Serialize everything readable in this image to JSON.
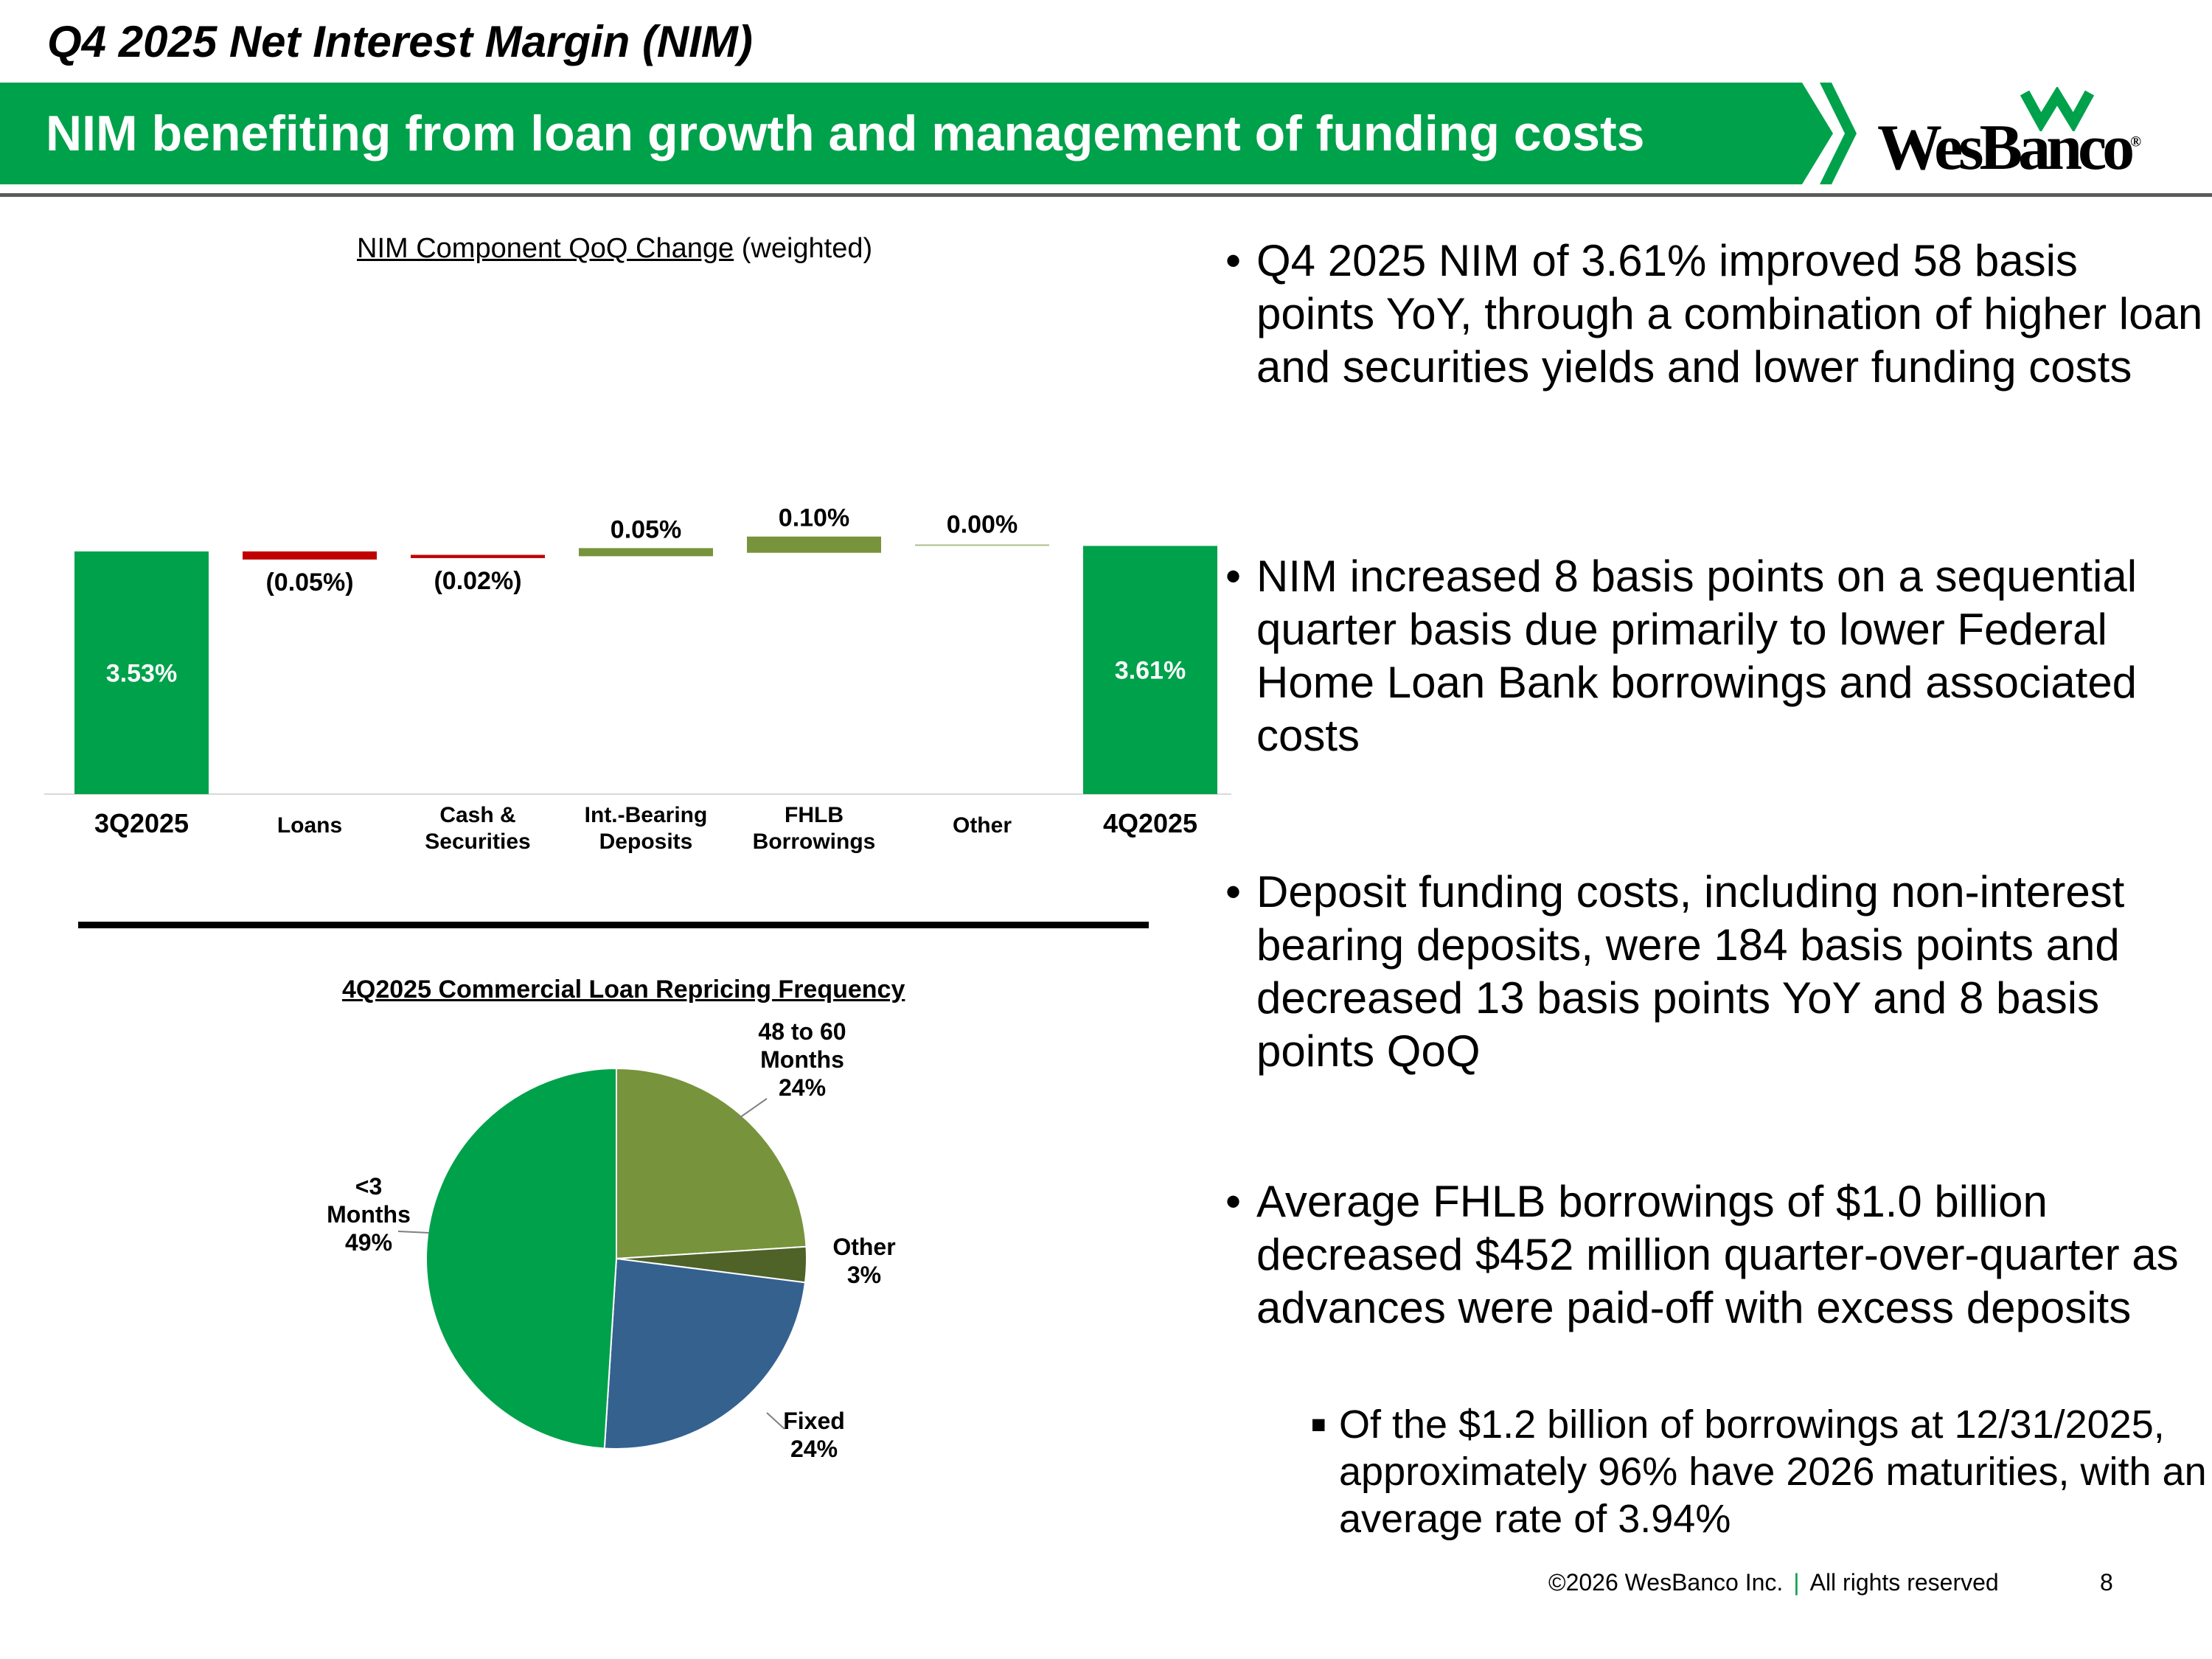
{
  "header": {
    "slide_title": "Q4 2025 Net Interest Margin (NIM)",
    "banner_text": "NIM benefiting from loan growth and management of funding costs",
    "logo_text": "WesBanco",
    "logo_registered": "®"
  },
  "colors": {
    "brand_green": "#00a14b",
    "increase_green": "#77933c",
    "decrease_red": "#c00000",
    "pie_blue": "#35618f",
    "pie_dark_olive": "#4f6228"
  },
  "chart_data": [
    {
      "type": "waterfall",
      "title": "NIM Component QoQ Change",
      "title_suffix": "(weighted)",
      "categories": [
        "3Q2025",
        "Loans",
        "Cash & Securities",
        "Int.-Bearing Deposits",
        "FHLB Borrowings",
        "Other",
        "4Q2025"
      ],
      "category_lines": [
        [
          "3Q2025"
        ],
        [
          "Loans"
        ],
        [
          "Cash &",
          "Securities"
        ],
        [
          "Int.-Bearing",
          "Deposits"
        ],
        [
          "FHLB",
          "Borrowings"
        ],
        [
          "Other"
        ],
        [
          "4Q2025"
        ]
      ],
      "values": [
        3.53,
        -0.05,
        -0.02,
        0.05,
        0.1,
        0.0,
        3.61
      ],
      "labels": [
        "3.53%",
        "(0.05%)",
        "(0.02%)",
        "0.05%",
        "0.10%",
        "0.00%",
        "3.61%"
      ],
      "kinds": [
        "total",
        "delta",
        "delta",
        "delta",
        "delta",
        "delta",
        "total"
      ],
      "ylim": [
        0,
        3.7
      ]
    },
    {
      "type": "pie",
      "title": "4Q2025 Commercial Loan Repricing Frequency",
      "slices": [
        {
          "label_lines": [
            "48 to 60",
            "Months"
          ],
          "pct_label": "24%",
          "value": 24
        },
        {
          "label_lines": [
            "Other"
          ],
          "pct_label": "3%",
          "value": 3
        },
        {
          "label_lines": [
            "Fixed"
          ],
          "pct_label": "24%",
          "value": 24
        },
        {
          "label_lines": [
            "<3",
            "Months"
          ],
          "pct_label": "49%",
          "value": 49
        }
      ]
    }
  ],
  "bullets": [
    "Q4 2025 NIM of 3.61% improved 58 basis points YoY, through a combination of higher loan and securities yields and lower funding costs",
    "NIM increased 8 basis points on a sequential quarter basis due primarily to lower Federal Home Loan Bank borrowings and associated costs",
    "Deposit funding costs, including non-interest bearing deposits, were 184 basis points and decreased 13 basis points YoY and 8 basis points QoQ",
    "Average FHLB borrowings of $1.0 billion decreased $452 million quarter-over-quarter as advances were paid-off with excess deposits"
  ],
  "sub_bullet": "Of the $1.2 billion of borrowings at 12/31/2025, approximately 96% have 2026 maturities, with an average rate of 3.94%",
  "footer": {
    "copyright": "©2026 WesBanco Inc.",
    "separator": "|",
    "rights": "All rights reserved",
    "page_number": "8"
  }
}
